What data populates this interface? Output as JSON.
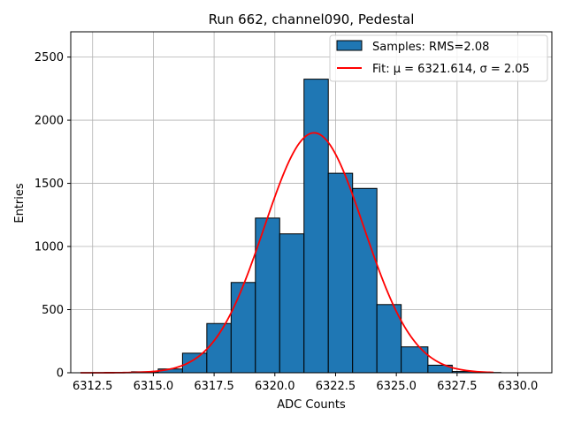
{
  "chart_data": {
    "type": "bar",
    "title": "Run 662, channel090, Pedestal",
    "xlabel": "ADC Counts",
    "ylabel": "Entries",
    "xlim": [
      6311.6,
      6331.4
    ],
    "ylim": [
      0,
      2700
    ],
    "xticks": [
      6312.5,
      6315.0,
      6317.5,
      6320.0,
      6322.5,
      6325.0,
      6327.5,
      6330.0
    ],
    "xtick_labels": [
      "6312.5",
      "6315.0",
      "6317.5",
      "6320.0",
      "6322.5",
      "6325.0",
      "6327.5",
      "6330.0"
    ],
    "yticks": [
      0,
      500,
      1000,
      1500,
      2000,
      2500
    ],
    "ytick_labels": [
      "0",
      "500",
      "1000",
      "1500",
      "2000",
      "2500"
    ],
    "grid": true,
    "legend_position": "top-right",
    "bins": [
      {
        "left": 6312.0,
        "right": 6313.1,
        "count": 0
      },
      {
        "left": 6313.1,
        "right": 6314.1,
        "count": 2
      },
      {
        "left": 6314.1,
        "right": 6315.2,
        "count": 8
      },
      {
        "left": 6315.2,
        "right": 6316.2,
        "count": 30
      },
      {
        "left": 6316.2,
        "right": 6317.2,
        "count": 155
      },
      {
        "left": 6317.2,
        "right": 6318.2,
        "count": 390
      },
      {
        "left": 6318.2,
        "right": 6319.2,
        "count": 715
      },
      {
        "left": 6319.2,
        "right": 6320.2,
        "count": 1225
      },
      {
        "left": 6320.2,
        "right": 6321.2,
        "count": 1100
      },
      {
        "left": 6321.2,
        "right": 6322.2,
        "count": 2325
      },
      {
        "left": 6322.2,
        "right": 6323.2,
        "count": 1580
      },
      {
        "left": 6323.2,
        "right": 6324.2,
        "count": 1460
      },
      {
        "left": 6324.2,
        "right": 6325.2,
        "count": 540
      },
      {
        "left": 6325.2,
        "right": 6326.3,
        "count": 205
      },
      {
        "left": 6326.3,
        "right": 6327.3,
        "count": 60
      },
      {
        "left": 6327.3,
        "right": 6328.3,
        "count": 10
      },
      {
        "left": 6328.3,
        "right": 6329.3,
        "count": 2
      }
    ],
    "fit": {
      "mu": 6321.614,
      "sigma": 2.05,
      "amplitude": 1900,
      "x_range": [
        6312.0,
        6329.0
      ]
    },
    "series": [
      {
        "name": "Samples: RMS=2.08",
        "kind": "histogram",
        "color": "#1f77b4"
      },
      {
        "name": "Fit: μ = 6321.614, σ = 2.05",
        "kind": "line",
        "color": "#ff0000"
      }
    ]
  }
}
